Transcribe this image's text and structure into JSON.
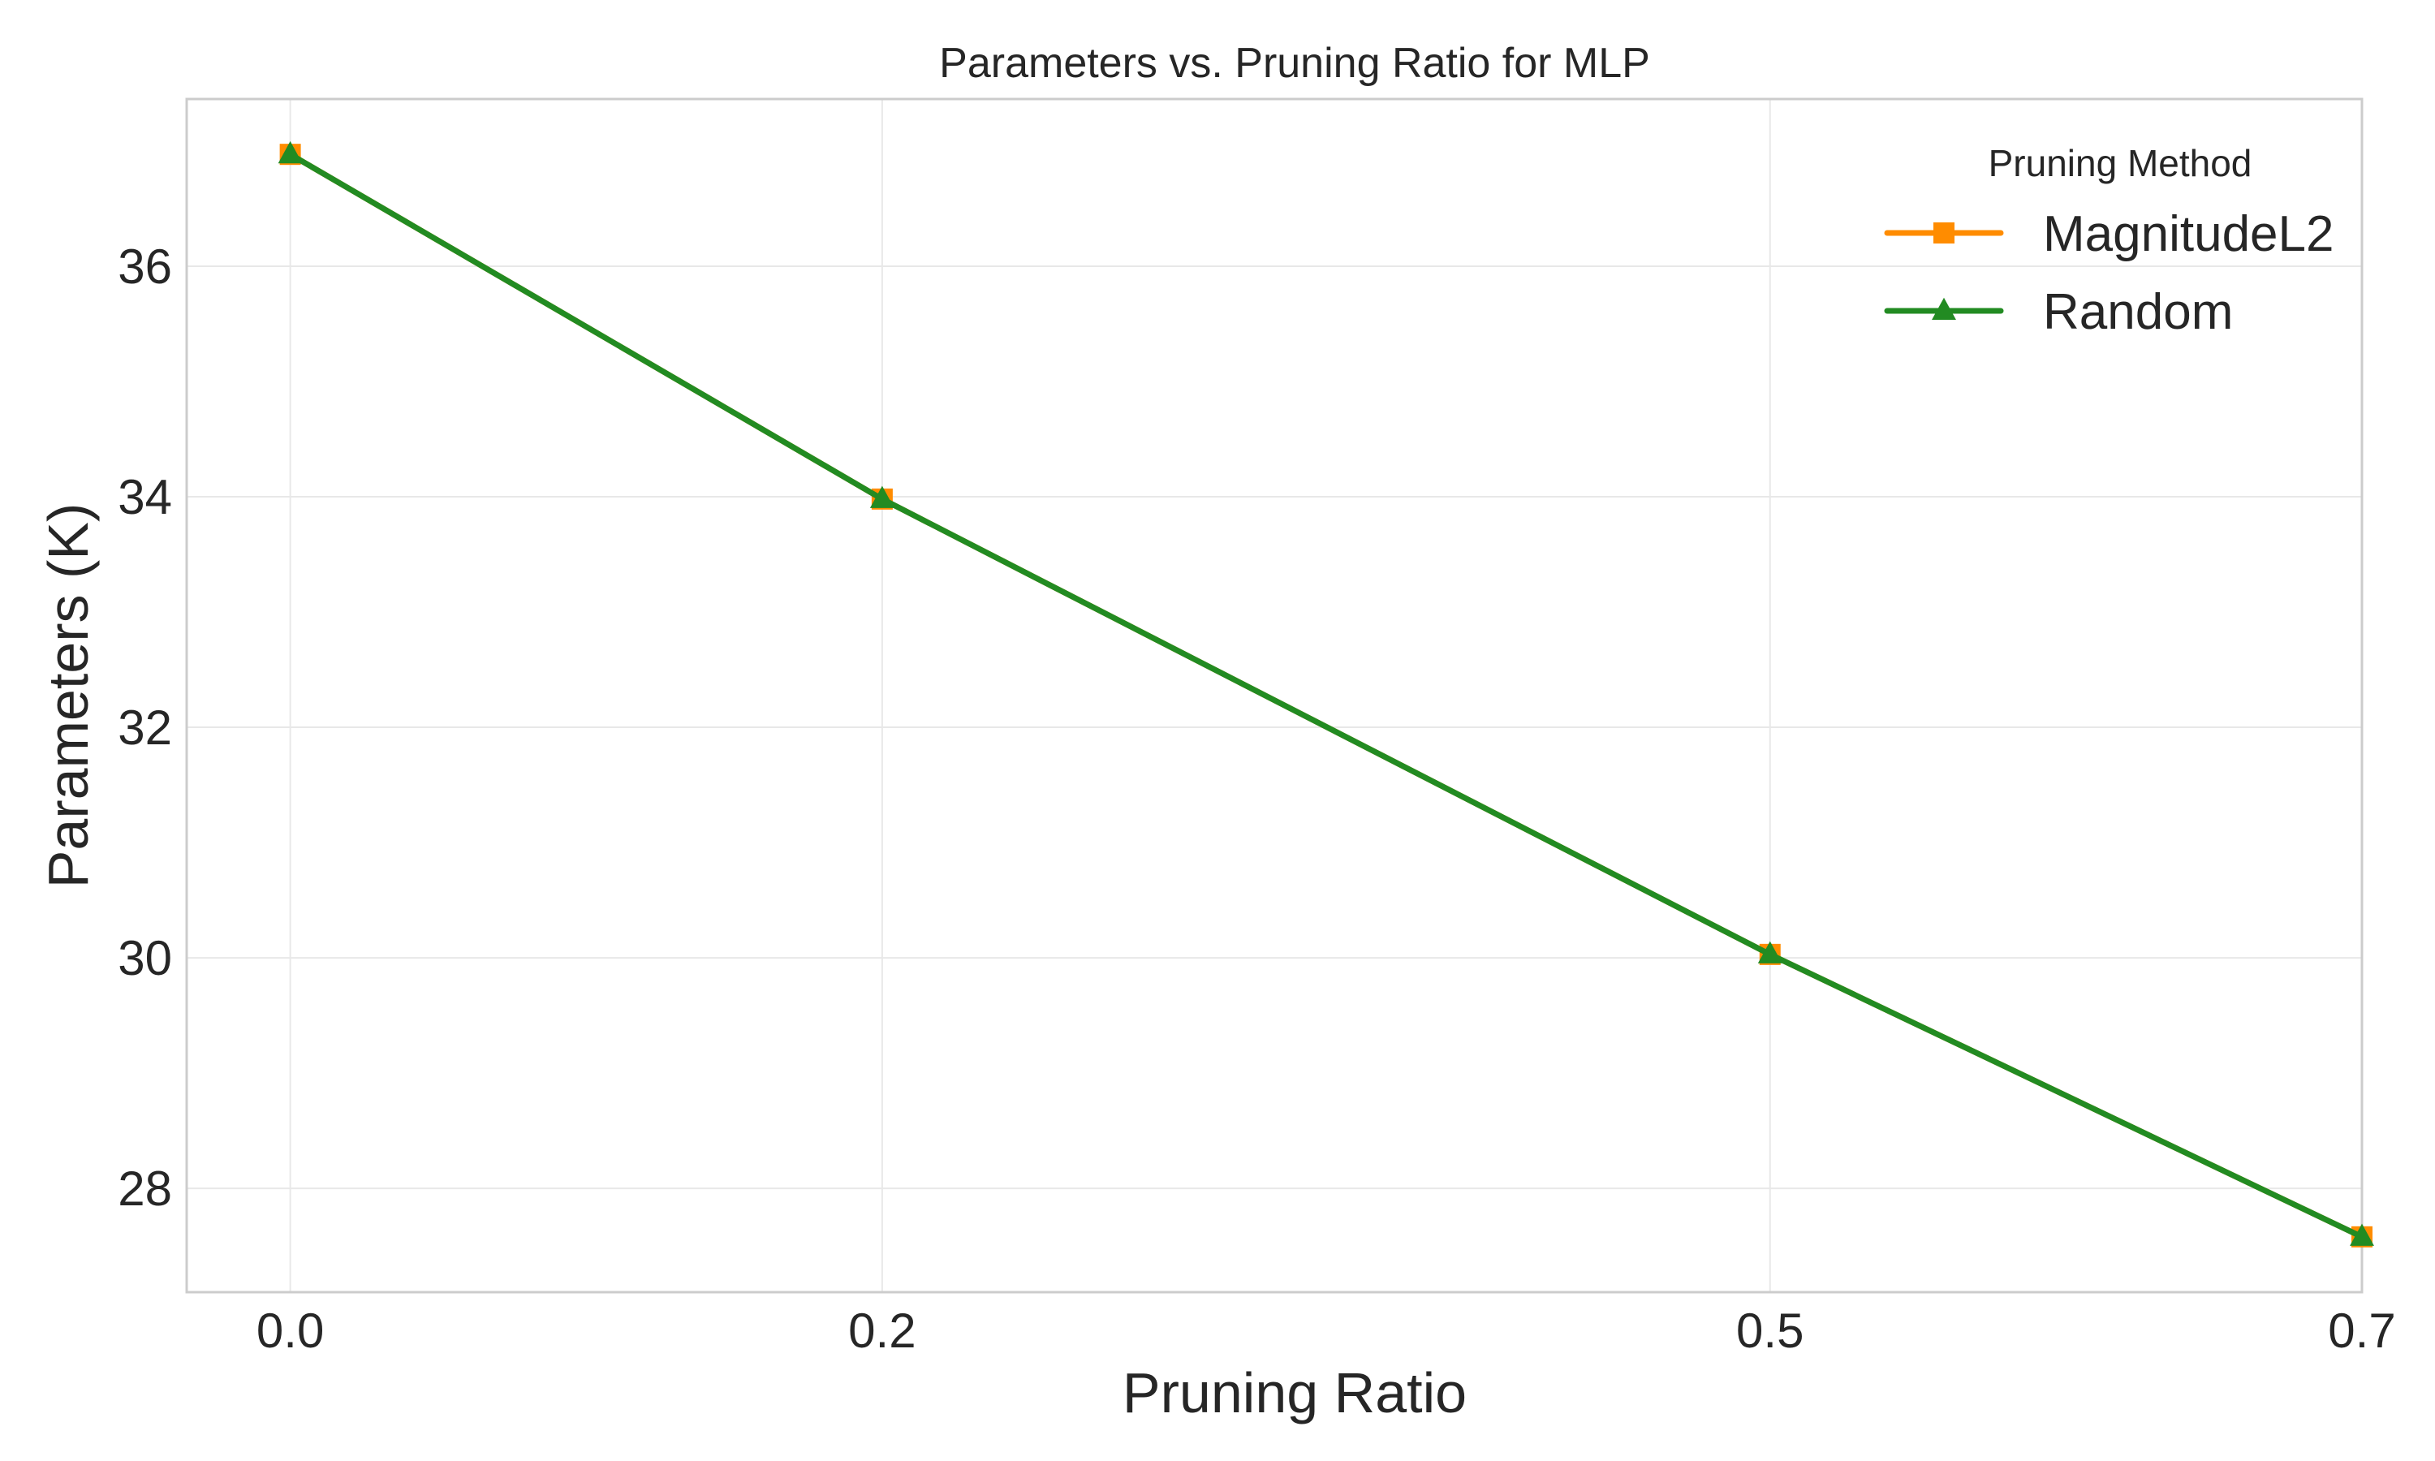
{
  "chart_data": {
    "type": "line",
    "title": "Parameters vs. Pruning Ratio for MLP",
    "xlabel": "Pruning Ratio",
    "ylabel": "Parameters (K)",
    "x": [
      0.0,
      0.2,
      0.5,
      0.7
    ],
    "xticks": [
      "0.0",
      "0.2",
      "0.5",
      "0.7"
    ],
    "yticks": [
      "28",
      "30",
      "32",
      "34",
      "36"
    ],
    "xlim": [
      -0.035,
      0.7
    ],
    "ylim": [
      27.1,
      37.45
    ],
    "grid": true,
    "legend": {
      "title": "Pruning Method",
      "placement": "top-right"
    },
    "series": [
      {
        "name": "MagnitudeL2",
        "values": [
          36.97,
          33.98,
          30.03,
          27.58
        ],
        "color": "#ff8c00",
        "marker": "square"
      },
      {
        "name": "Random",
        "values": [
          36.97,
          33.98,
          30.03,
          27.58
        ],
        "color": "#228b22",
        "marker": "triangle"
      }
    ]
  }
}
